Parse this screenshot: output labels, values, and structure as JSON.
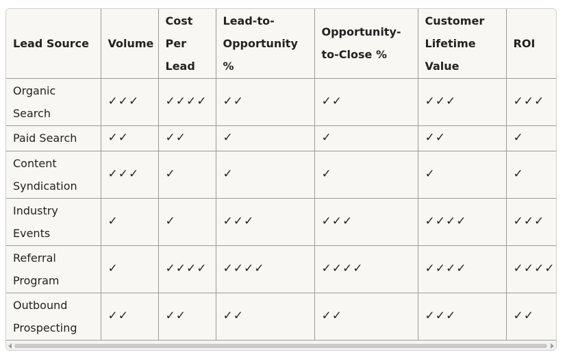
{
  "table": {
    "headers": [
      "Lead Source",
      "Volume",
      "Cost Per Lead",
      "Lead-to-Opportunity %",
      "Opportunity-to-Close %",
      "Customer Lifetime Value",
      "ROI"
    ],
    "rows": [
      [
        "Organic Search",
        "✓✓✓",
        "✓✓✓✓",
        "✓✓",
        "✓✓",
        "✓✓✓",
        "✓✓✓"
      ],
      [
        "Paid Search",
        "✓✓",
        "✓✓",
        "✓",
        "✓",
        "✓✓",
        "✓"
      ],
      [
        "Content Syndication",
        "✓✓✓",
        "✓",
        "✓",
        "✓",
        "✓",
        "✓"
      ],
      [
        "Industry Events",
        "✓",
        "✓",
        "✓✓✓",
        "✓✓✓",
        "✓✓✓✓",
        "✓✓✓"
      ],
      [
        "Referral Program",
        "✓",
        "✓✓✓✓",
        "✓✓✓✓",
        "✓✓✓✓",
        "✓✓✓✓",
        "✓✓✓✓"
      ],
      [
        "Outbound Prospecting",
        "✓✓",
        "✓✓",
        "✓✓",
        "✓✓",
        "✓✓✓",
        "✓✓"
      ]
    ]
  },
  "scrollbar": {
    "left_icon": "scroll-left-arrow-icon",
    "right_icon": "scroll-right-arrow-icon"
  }
}
